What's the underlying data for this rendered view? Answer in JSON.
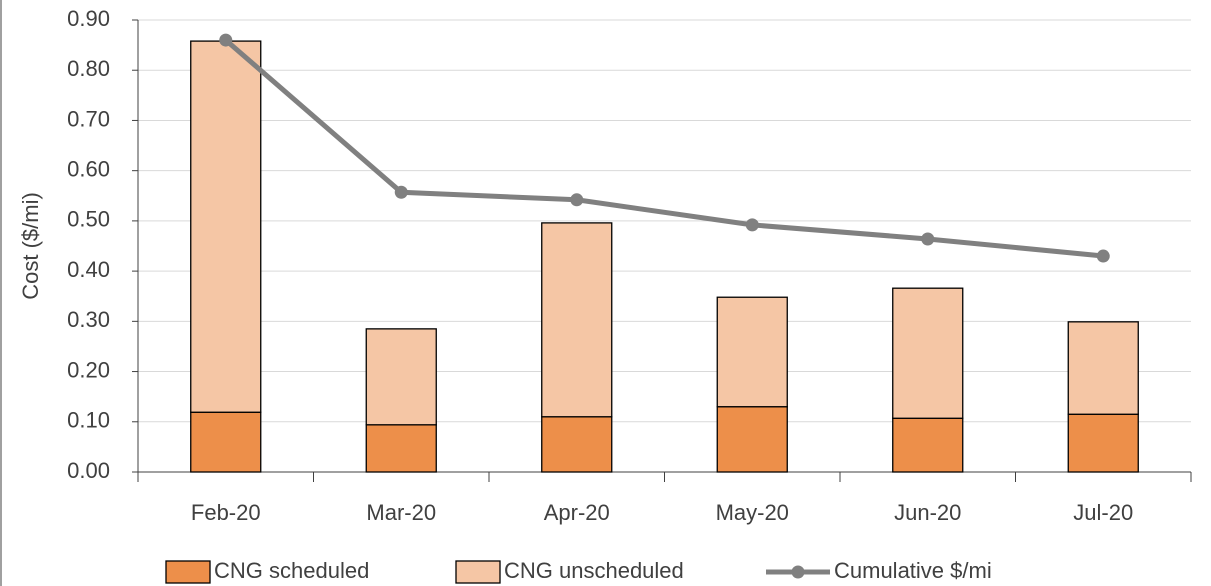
{
  "chart_data": {
    "type": "bar",
    "y_label": "Cost ($/mi)",
    "categories": [
      "Feb-20",
      "Mar-20",
      "Apr-20",
      "May-20",
      "Jun-20",
      "Jul-20"
    ],
    "series": [
      {
        "name": "CNG scheduled",
        "type": "bar",
        "color": "#ed8f4a",
        "values": [
          0.119,
          0.094,
          0.11,
          0.13,
          0.107,
          0.115
        ]
      },
      {
        "name": "CNG unscheduled",
        "type": "bar",
        "color": "#f5c6a5",
        "values": [
          0.739,
          0.191,
          0.386,
          0.218,
          0.259,
          0.184
        ]
      },
      {
        "name": "Cumulative $/mi",
        "type": "line",
        "color": "#808080",
        "values": [
          0.86,
          0.557,
          0.542,
          0.492,
          0.464,
          0.43
        ]
      }
    ],
    "stacked": true,
    "ylim": [
      0,
      0.9
    ],
    "yticks": [
      {
        "value": 0,
        "label": "0.00"
      },
      {
        "value": 0.1,
        "label": "0.10"
      },
      {
        "value": 0.2,
        "label": "0.20"
      },
      {
        "value": 0.3,
        "label": "0.30"
      },
      {
        "value": 0.4,
        "label": "0.40"
      },
      {
        "value": 0.5,
        "label": "0.50"
      },
      {
        "value": 0.6,
        "label": "0.60"
      },
      {
        "value": 0.7,
        "label": "0.70"
      },
      {
        "value": 0.8,
        "label": "0.80"
      },
      {
        "value": 0.9,
        "label": "0.90"
      }
    ],
    "grid": true,
    "legend": "bottom"
  }
}
